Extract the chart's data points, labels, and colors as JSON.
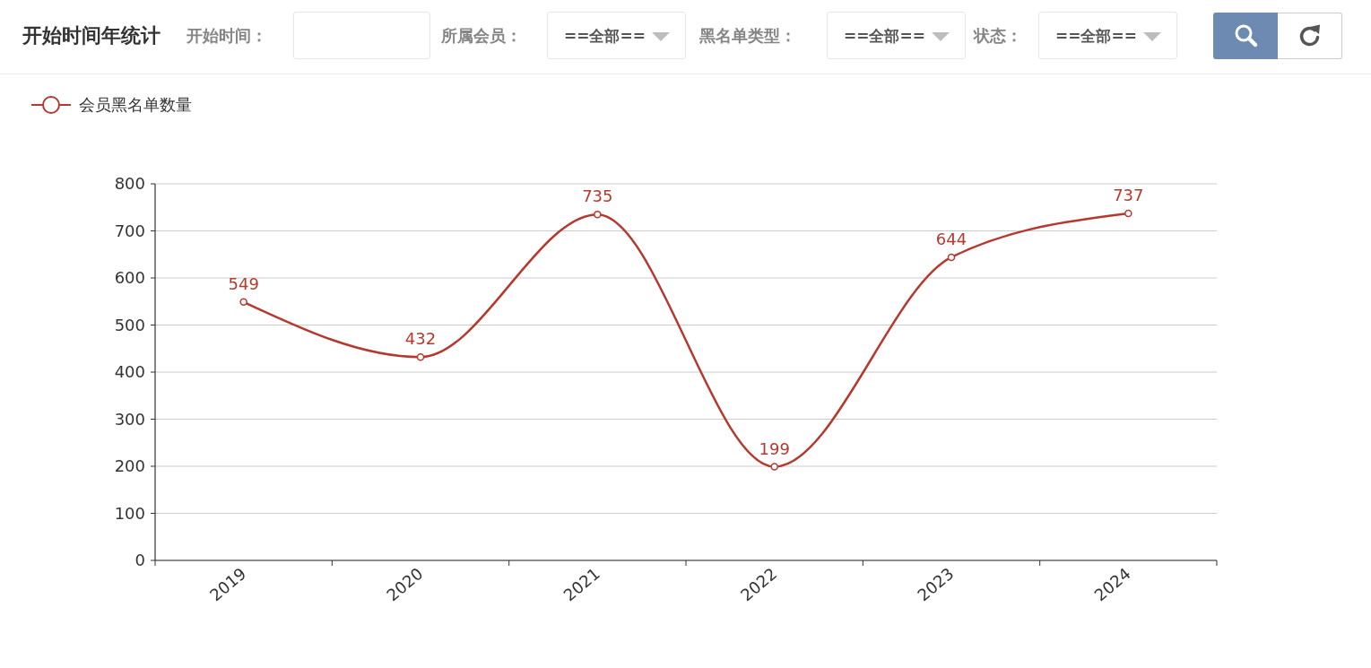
{
  "chart_data": {
    "type": "line",
    "title": "开始时间年统计",
    "annotations": [
      "开始时间：",
      "所属会员：",
      "==全部==",
      "黑名单类型：",
      "==全部==",
      "状态：",
      "==全部=="
    ],
    "categories": [
      "2019",
      "2020",
      "2021",
      "2022",
      "2023",
      "2024"
    ],
    "series": [
      {
        "name": "会员黑名单数量",
        "color": "#b5392f",
        "values": [
          549,
          432,
          735,
          199,
          644,
          737
        ]
      }
    ],
    "ylim": [
      0,
      800
    ],
    "yticks": [
      0,
      100,
      200,
      300,
      400,
      500,
      600,
      700,
      800
    ],
    "grid": "y",
    "legend": "top left",
    "marker": "circle",
    "line_style": "solid",
    "data_labels": true
  }
}
